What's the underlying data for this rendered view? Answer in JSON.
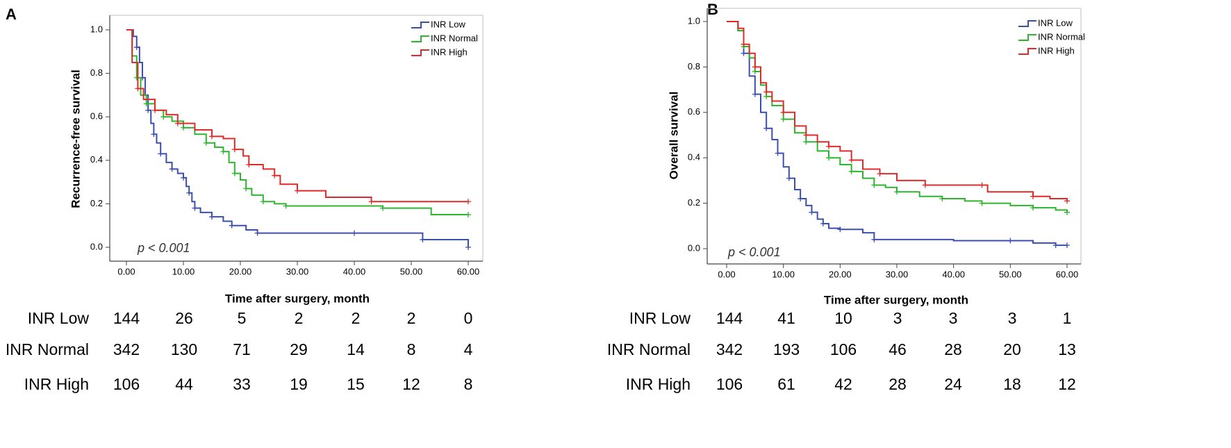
{
  "colors": {
    "low": "#3a4fad",
    "normal": "#2db52d",
    "high": "#e02a2a",
    "axis": "#000000",
    "frame": "#444444"
  },
  "chart_data": [
    {
      "panel_label": "A",
      "type": "line",
      "subtype": "kaplan-meier",
      "title": "",
      "xlabel": "Time after surgery, month",
      "ylabel": "Recurrence-free survival",
      "xlim": [
        0,
        60
      ],
      "ylim": [
        0,
        1
      ],
      "xticks": [
        "0.00",
        "10.00",
        "20.00",
        "30.00",
        "40.00",
        "50.00",
        "60.00"
      ],
      "yticks": [
        "0.0",
        "0.2",
        "0.4",
        "0.6",
        "0.8",
        "1.0"
      ],
      "annotation": "p < 0.001",
      "legend_position": "top-right",
      "series": [
        {
          "name": "INR Low",
          "color_key": "low",
          "x": [
            0,
            1.2,
            1.8,
            2.3,
            2.8,
            3.3,
            3.8,
            4.3,
            4.8,
            5.3,
            6,
            7,
            8,
            9,
            10,
            10.5,
            11,
            11.5,
            12,
            13,
            15,
            17,
            18.5,
            21,
            23,
            30,
            40,
            51.5,
            52,
            60
          ],
          "y": [
            1.0,
            0.97,
            0.92,
            0.85,
            0.78,
            0.7,
            0.63,
            0.57,
            0.52,
            0.48,
            0.43,
            0.39,
            0.36,
            0.34,
            0.32,
            0.28,
            0.25,
            0.21,
            0.18,
            0.16,
            0.14,
            0.12,
            0.1,
            0.08,
            0.065,
            0.065,
            0.065,
            0.065,
            0.035,
            0.0
          ]
        },
        {
          "name": "INR Normal",
          "color_key": "normal",
          "x": [
            0,
            1,
            1.8,
            2.5,
            3.5,
            5,
            6.5,
            8,
            10,
            12,
            14,
            15.5,
            17,
            18,
            19,
            20,
            21,
            22,
            24,
            26,
            28,
            37,
            45,
            53.5,
            60
          ],
          "y": [
            1.0,
            0.88,
            0.78,
            0.7,
            0.66,
            0.63,
            0.6,
            0.58,
            0.55,
            0.52,
            0.48,
            0.46,
            0.44,
            0.39,
            0.34,
            0.31,
            0.27,
            0.24,
            0.21,
            0.2,
            0.19,
            0.19,
            0.18,
            0.15,
            0.15
          ]
        },
        {
          "name": "INR High",
          "color_key": "high",
          "x": [
            0,
            1,
            2,
            3,
            5,
            7,
            9,
            12,
            15,
            17,
            19,
            20.5,
            21.5,
            24,
            26,
            27,
            30,
            35,
            43,
            60
          ],
          "y": [
            1.0,
            0.85,
            0.73,
            0.68,
            0.63,
            0.61,
            0.57,
            0.54,
            0.51,
            0.5,
            0.45,
            0.42,
            0.38,
            0.36,
            0.33,
            0.29,
            0.26,
            0.23,
            0.21,
            0.21
          ]
        }
      ],
      "risk_table": {
        "rows": [
          {
            "label": "INR Low",
            "counts": [
              "144",
              "26",
              "5",
              "2",
              "2",
              "2",
              "0"
            ]
          },
          {
            "label": "INR Normal",
            "counts": [
              "342",
              "130",
              "71",
              "29",
              "14",
              "8",
              "4"
            ]
          },
          {
            "label": "INR High",
            "counts": [
              "106",
              "44",
              "33",
              "19",
              "15",
              "12",
              "8"
            ]
          }
        ]
      }
    },
    {
      "panel_label": "B",
      "type": "line",
      "subtype": "kaplan-meier",
      "title": "",
      "xlabel": "Time after surgery, month",
      "ylabel": "Overall survival",
      "xlim": [
        0,
        60
      ],
      "ylim": [
        0,
        1
      ],
      "xticks": [
        "0.00",
        "10.00",
        "20.00",
        "30.00",
        "40.00",
        "50.00",
        "60.00"
      ],
      "yticks": [
        "0.0",
        "0.2",
        "0.4",
        "0.6",
        "0.8",
        "1.0"
      ],
      "annotation": "p < 0.001",
      "legend_position": "top-right",
      "series": [
        {
          "name": "INR Low",
          "color_key": "low",
          "x": [
            0,
            2,
            3,
            4,
            5,
            6,
            7,
            8,
            9,
            10,
            11,
            12,
            13,
            14,
            15,
            16,
            17,
            18,
            20,
            24,
            26,
            40,
            50,
            54,
            58,
            60
          ],
          "y": [
            1.0,
            0.96,
            0.86,
            0.76,
            0.68,
            0.6,
            0.53,
            0.48,
            0.42,
            0.36,
            0.31,
            0.26,
            0.22,
            0.19,
            0.16,
            0.13,
            0.11,
            0.09,
            0.085,
            0.07,
            0.04,
            0.035,
            0.035,
            0.025,
            0.015,
            0.015
          ]
        },
        {
          "name": "INR Normal",
          "color_key": "normal",
          "x": [
            0,
            2,
            3,
            4,
            5,
            6,
            7,
            8,
            10,
            12,
            14,
            16,
            18,
            20,
            22,
            24,
            26,
            28,
            30,
            34,
            38,
            42,
            45,
            50,
            54,
            58,
            60
          ],
          "y": [
            1.0,
            0.96,
            0.89,
            0.84,
            0.78,
            0.72,
            0.67,
            0.63,
            0.57,
            0.51,
            0.47,
            0.43,
            0.4,
            0.37,
            0.34,
            0.31,
            0.28,
            0.27,
            0.25,
            0.23,
            0.22,
            0.21,
            0.2,
            0.19,
            0.18,
            0.17,
            0.16
          ]
        },
        {
          "name": "INR High",
          "color_key": "high",
          "x": [
            0,
            2,
            3,
            4,
            5,
            6,
            7,
            8,
            10,
            12,
            14,
            16,
            18,
            20,
            22,
            24,
            27,
            30,
            35,
            40,
            45,
            46,
            54,
            57,
            60
          ],
          "y": [
            1.0,
            0.97,
            0.9,
            0.86,
            0.8,
            0.73,
            0.69,
            0.65,
            0.6,
            0.54,
            0.5,
            0.47,
            0.45,
            0.43,
            0.39,
            0.35,
            0.33,
            0.3,
            0.28,
            0.28,
            0.28,
            0.25,
            0.23,
            0.22,
            0.21
          ]
        }
      ],
      "risk_table": {
        "rows": [
          {
            "label": "INR Low",
            "counts": [
              "144",
              "41",
              "10",
              "3",
              "3",
              "3",
              "1"
            ]
          },
          {
            "label": "INR Normal",
            "counts": [
              "342",
              "193",
              "106",
              "46",
              "28",
              "20",
              "13"
            ]
          },
          {
            "label": "INR High",
            "counts": [
              "106",
              "61",
              "42",
              "28",
              "24",
              "18",
              "12"
            ]
          }
        ]
      }
    }
  ]
}
